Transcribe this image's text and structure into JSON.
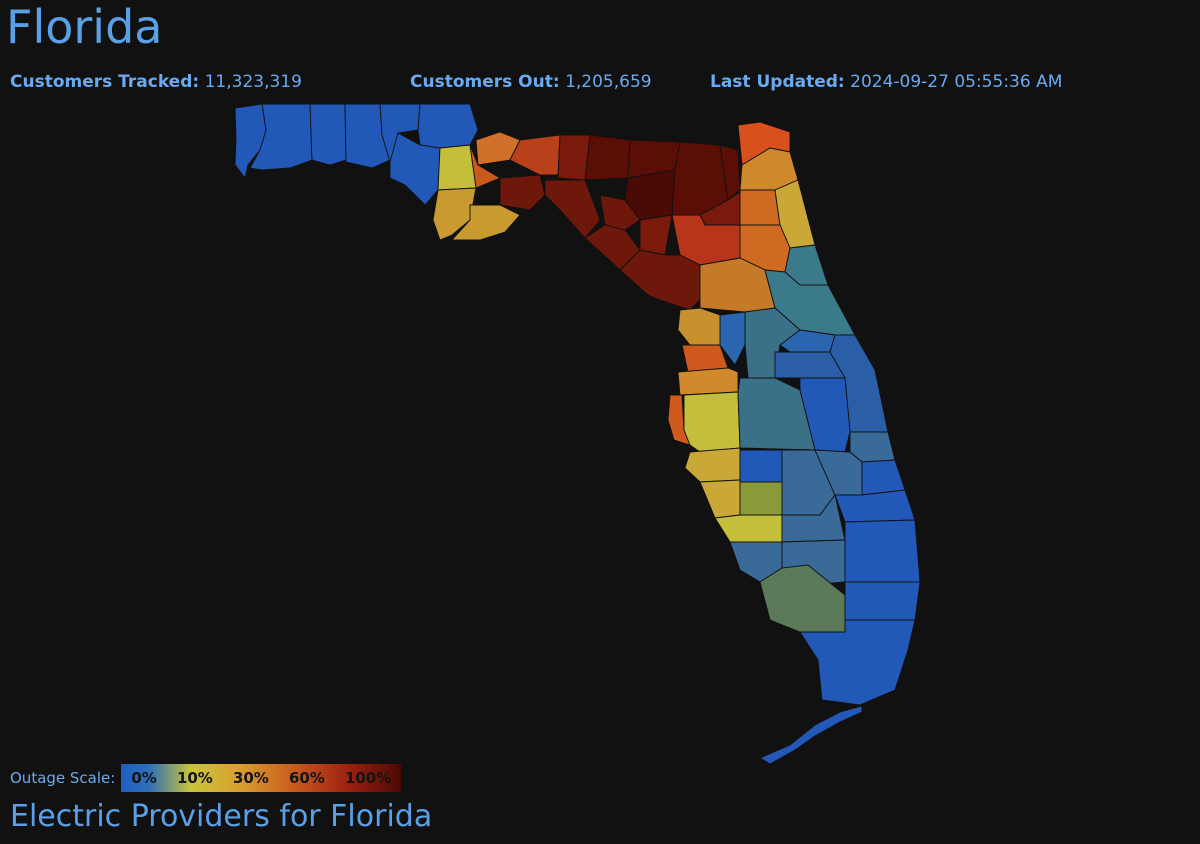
{
  "header": {
    "title": "Florida",
    "customers_tracked_label": "Customers Tracked:",
    "customers_tracked_value": "11,323,319",
    "customers_out_label": "Customers Out:",
    "customers_out_value": "1,205,659",
    "last_updated_label": "Last Updated:",
    "last_updated_value": "2024-09-27 05:55:36 AM"
  },
  "legend": {
    "label": "Outage Scale:",
    "ticks": [
      "0%",
      "10%",
      "30%",
      "60%",
      "100%"
    ]
  },
  "footer": {
    "providers_link": "Electric Providers for Florida"
  },
  "colors": {
    "background": "#111111",
    "text_accent": "#5aa0e6",
    "scale_0": "#2258b8",
    "scale_10": "#c4bf3a",
    "scale_30": "#d08a2c",
    "scale_60": "#c24a1a",
    "scale_100": "#4a0a05"
  },
  "map": {
    "region": "Florida counties",
    "icon": "florida-outage-map"
  }
}
